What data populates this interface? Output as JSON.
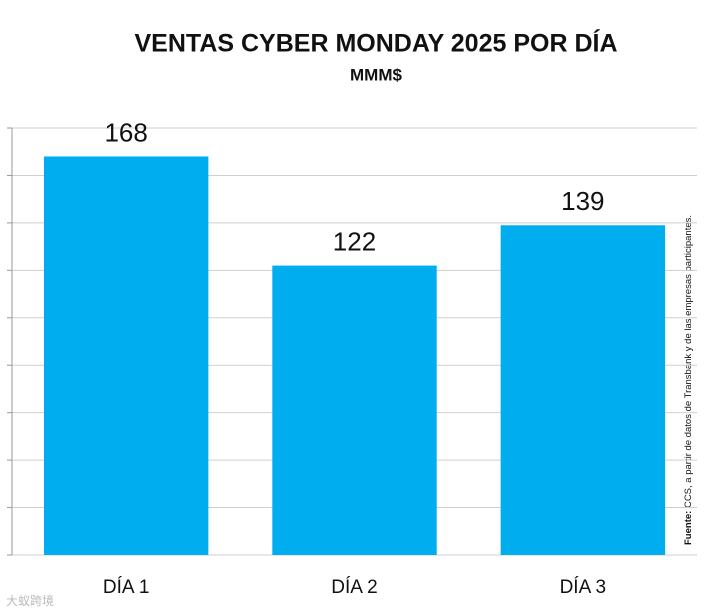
{
  "chart_data": {
    "type": "bar",
    "title": "VENTAS CYBER MONDAY 2025 POR DÍA",
    "subtitle": "MMM$",
    "categories": [
      "DÍA 1",
      "DÍA 2",
      "DÍA 3"
    ],
    "values": [
      168,
      122,
      139
    ],
    "color": "#00aeef",
    "ylim": [
      0,
      180
    ],
    "yticks": [
      0,
      20,
      40,
      60,
      80,
      100,
      120,
      140,
      160,
      180
    ],
    "grid": true,
    "source_label": "Fuente:",
    "source": "CCS, a partir de datos de Transbank y de las empresas participantes."
  },
  "watermark": "大蚁跨境"
}
